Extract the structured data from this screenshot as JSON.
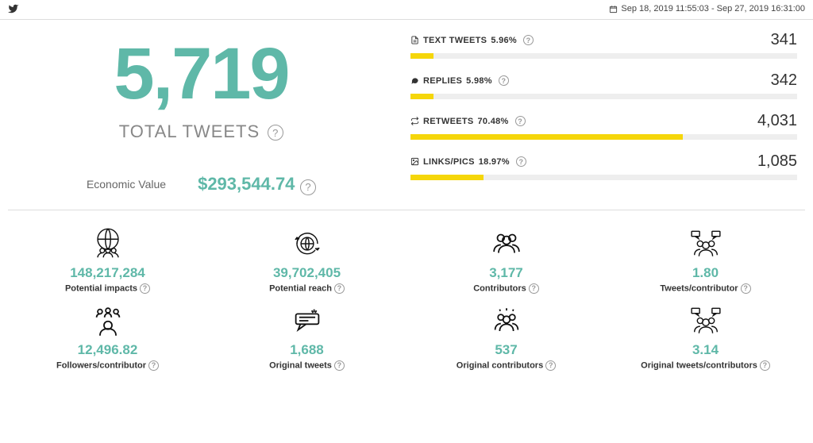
{
  "header": {
    "date_range": "Sep 18, 2019 11:55:03 - Sep 27, 2019 16:31:00"
  },
  "summary": {
    "total_tweets": "5,719",
    "total_tweets_label": "TOTAL TWEETS",
    "economic_value_label": "Economic Value",
    "economic_value": "$293,544.74"
  },
  "breakdown": [
    {
      "label": "TEXT TWEETS",
      "pct": "5.96%",
      "value": "341",
      "fill": 5.96
    },
    {
      "label": "REPLIES",
      "pct": "5.98%",
      "value": "342",
      "fill": 5.98
    },
    {
      "label": "RETWEETS",
      "pct": "70.48%",
      "value": "4,031",
      "fill": 70.48
    },
    {
      "label": "LINKS/PICS",
      "pct": "18.97%",
      "value": "1,085",
      "fill": 18.97
    }
  ],
  "stats": [
    {
      "value": "148,217,284",
      "label": "Potential impacts"
    },
    {
      "value": "39,702,405",
      "label": "Potential reach"
    },
    {
      "value": "3,177",
      "label": "Contributors"
    },
    {
      "value": "1.80",
      "label": "Tweets/contributor"
    },
    {
      "value": "12,496.82",
      "label": "Followers/contributor"
    },
    {
      "value": "1,688",
      "label": "Original tweets"
    },
    {
      "value": "537",
      "label": "Original contributors"
    },
    {
      "value": "3.14",
      "label": "Original tweets/contributors"
    }
  ],
  "colors": {
    "accent": "#5fb8a8",
    "bar": "#f5d60a"
  }
}
